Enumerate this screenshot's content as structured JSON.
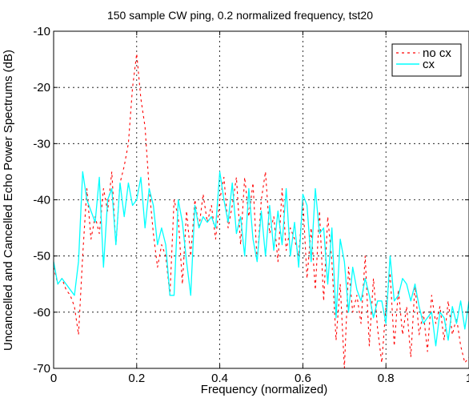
{
  "chart_data": {
    "type": "line",
    "title": "150 sample CW ping, 0.2 normalized frequency, tst20",
    "xlabel": "Frequency (normalized)",
    "ylabel": "Uncancelled and Cancelled Echo Power Spectrums (dB)",
    "xlim": [
      0,
      1
    ],
    "ylim": [
      -70,
      -10
    ],
    "xticks": [
      "0",
      "0.2",
      "0.4",
      "0.6",
      "0.8",
      "1"
    ],
    "yticks": [
      "-10",
      "-20",
      "-30",
      "-40",
      "-50",
      "-60",
      "-70"
    ],
    "grid": true,
    "legend_position": "top-right",
    "series": [
      {
        "name": "no cx",
        "color": "#ff0000",
        "style": "dashed",
        "x": [
          0.0,
          0.01,
          0.02,
          0.03,
          0.04,
          0.05,
          0.06,
          0.07,
          0.08,
          0.09,
          0.1,
          0.11,
          0.12,
          0.13,
          0.14,
          0.15,
          0.16,
          0.17,
          0.18,
          0.19,
          0.2,
          0.21,
          0.22,
          0.23,
          0.24,
          0.25,
          0.26,
          0.27,
          0.28,
          0.29,
          0.3,
          0.31,
          0.32,
          0.33,
          0.34,
          0.35,
          0.36,
          0.37,
          0.38,
          0.39,
          0.4,
          0.41,
          0.42,
          0.43,
          0.44,
          0.45,
          0.46,
          0.47,
          0.48,
          0.49,
          0.5,
          0.51,
          0.52,
          0.53,
          0.54,
          0.55,
          0.56,
          0.57,
          0.58,
          0.59,
          0.6,
          0.61,
          0.62,
          0.63,
          0.64,
          0.65,
          0.66,
          0.67,
          0.68,
          0.69,
          0.7,
          0.71,
          0.72,
          0.73,
          0.74,
          0.75,
          0.76,
          0.77,
          0.78,
          0.79,
          0.8,
          0.81,
          0.82,
          0.83,
          0.84,
          0.85,
          0.86,
          0.87,
          0.88,
          0.89,
          0.9,
          0.91,
          0.92,
          0.93,
          0.94,
          0.95,
          0.96,
          0.97,
          0.98,
          0.99,
          1.0
        ],
        "y": [
          -52,
          -55,
          -54,
          -56,
          -57,
          -59,
          -64,
          -50,
          -38,
          -47,
          -43,
          -46,
          -38,
          -42,
          -35,
          -48,
          -37,
          -34,
          -30,
          -20,
          -14,
          -22,
          -27,
          -38,
          -46,
          -52,
          -48,
          -50,
          -57,
          -40,
          -43,
          -55,
          -42,
          -50,
          -40,
          -45,
          -39,
          -44,
          -41,
          -47,
          -40,
          -36,
          -45,
          -41,
          -36,
          -48,
          -36,
          -43,
          -37,
          -51,
          -40,
          -35,
          -46,
          -43,
          -51,
          -38,
          -49,
          -45,
          -47,
          -50,
          -40,
          -54,
          -45,
          -56,
          -42,
          -58,
          -43,
          -51,
          -65,
          -55,
          -70,
          -52,
          -60,
          -57,
          -62,
          -50,
          -66,
          -54,
          -63,
          -69,
          -59,
          -53,
          -66,
          -56,
          -64,
          -59,
          -68,
          -55,
          -64,
          -60,
          -67,
          -57,
          -62,
          -59,
          -65,
          -58,
          -64,
          -61,
          -66,
          -69,
          -68
        ]
      },
      {
        "name": "cx",
        "color": "#00ffff",
        "style": "solid",
        "x": [
          0.0,
          0.01,
          0.02,
          0.03,
          0.04,
          0.05,
          0.06,
          0.07,
          0.08,
          0.09,
          0.1,
          0.11,
          0.12,
          0.13,
          0.14,
          0.15,
          0.16,
          0.17,
          0.18,
          0.19,
          0.2,
          0.21,
          0.22,
          0.23,
          0.24,
          0.25,
          0.26,
          0.27,
          0.28,
          0.29,
          0.3,
          0.31,
          0.32,
          0.33,
          0.34,
          0.35,
          0.36,
          0.37,
          0.38,
          0.39,
          0.4,
          0.41,
          0.42,
          0.43,
          0.44,
          0.45,
          0.46,
          0.47,
          0.48,
          0.49,
          0.5,
          0.51,
          0.52,
          0.53,
          0.54,
          0.55,
          0.56,
          0.57,
          0.58,
          0.59,
          0.6,
          0.61,
          0.62,
          0.63,
          0.64,
          0.65,
          0.66,
          0.67,
          0.68,
          0.69,
          0.7,
          0.71,
          0.72,
          0.73,
          0.74,
          0.75,
          0.76,
          0.77,
          0.78,
          0.79,
          0.8,
          0.81,
          0.82,
          0.83,
          0.84,
          0.85,
          0.86,
          0.87,
          0.88,
          0.89,
          0.9,
          0.91,
          0.92,
          0.93,
          0.94,
          0.95,
          0.96,
          0.97,
          0.98,
          0.99,
          1.0
        ],
        "y": [
          -51,
          -55,
          -54,
          -55,
          -56,
          -57,
          -51,
          -35,
          -40,
          -42,
          -44,
          -36,
          -52,
          -40,
          -38,
          -48,
          -37,
          -43,
          -37,
          -41,
          -40,
          -36,
          -45,
          -38,
          -41,
          -48,
          -45,
          -48,
          -57,
          -57,
          -40,
          -44,
          -51,
          -57,
          -41,
          -45,
          -43,
          -44,
          -43,
          -45,
          -35,
          -40,
          -44,
          -37,
          -46,
          -43,
          -50,
          -38,
          -47,
          -51,
          -42,
          -50,
          -41,
          -49,
          -42,
          -48,
          -38,
          -50,
          -44,
          -52,
          -39,
          -41,
          -51,
          -38,
          -46,
          -45,
          -55,
          -45,
          -61,
          -47,
          -51,
          -60,
          -52,
          -56,
          -58,
          -54,
          -57,
          -61,
          -58,
          -58,
          -62,
          -50,
          -58,
          -57,
          -54,
          -55,
          -58,
          -55,
          -59,
          -62,
          -61,
          -60,
          -66,
          -60,
          -61,
          -65,
          -59,
          -62,
          -58,
          -63,
          -58
        ]
      }
    ]
  }
}
